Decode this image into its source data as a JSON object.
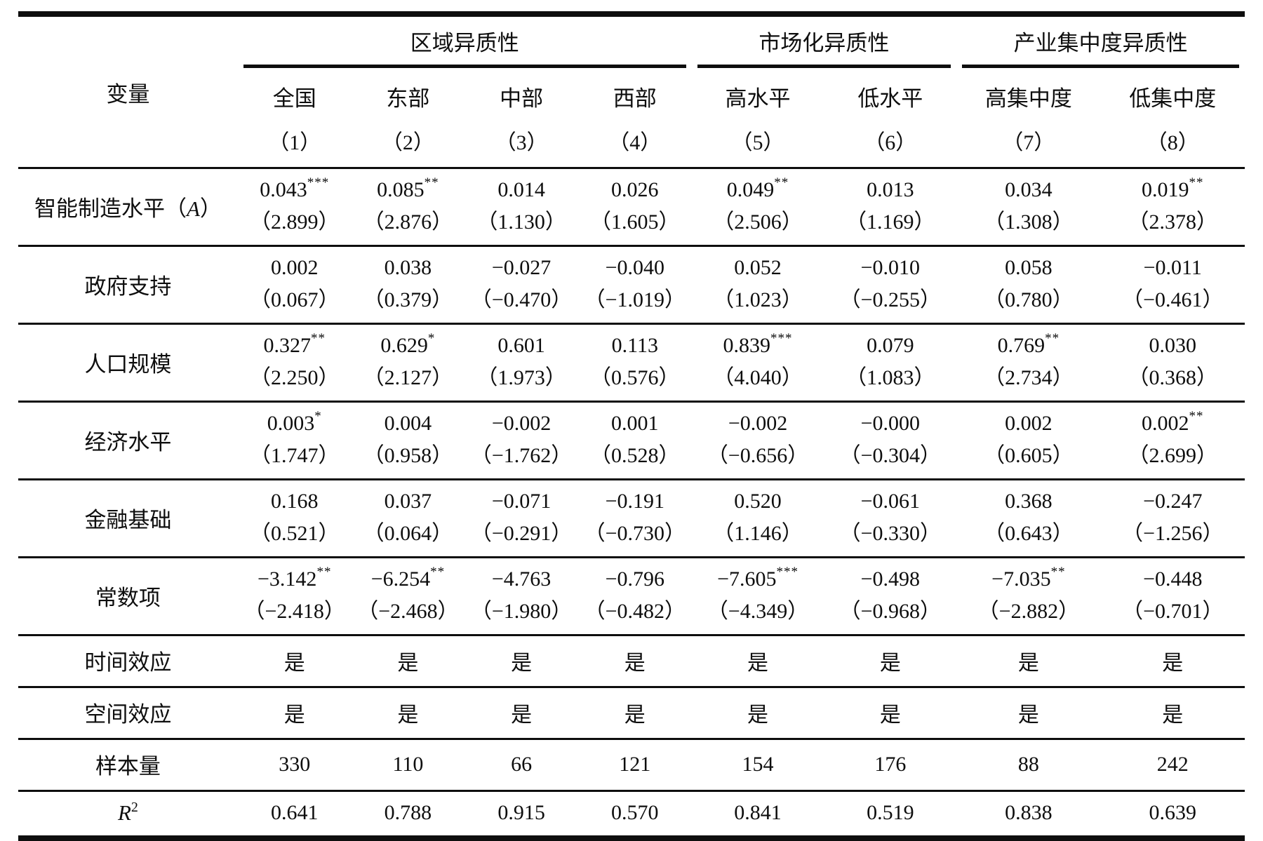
{
  "colors": {
    "text": "#0e0e0e",
    "rule": "#0e0e0e",
    "background": "#ffffff"
  },
  "table": {
    "header": {
      "variable_label": "变量",
      "groups": [
        {
          "label": "区域异质性",
          "span": 4
        },
        {
          "label": "市场化异质性",
          "span": 2
        },
        {
          "label": "产业集中度异质性",
          "span": 2
        }
      ],
      "columns": [
        "全国",
        "东部",
        "中部",
        "西部",
        "高水平",
        "低水平",
        "高集中度",
        "低集中度"
      ],
      "model_numbers": [
        "（1）",
        "（2）",
        "（3）",
        "（4）",
        "（5）",
        "（6）",
        "（7）",
        "（8）"
      ]
    },
    "rows": [
      {
        "kind": "coef",
        "label": {
          "pre": "智能制造水平（",
          "em": "A",
          "suf": "）"
        },
        "cells": [
          {
            "c": "0.043",
            "s": "***",
            "t": "（2.899）"
          },
          {
            "c": "0.085",
            "s": "**",
            "t": "（2.876）"
          },
          {
            "c": "0.014",
            "s": "",
            "t": "（1.130）"
          },
          {
            "c": "0.026",
            "s": "",
            "t": "（1.605）"
          },
          {
            "c": "0.049",
            "s": "**",
            "t": "（2.506）"
          },
          {
            "c": "0.013",
            "s": "",
            "t": "（1.169）"
          },
          {
            "c": "0.034",
            "s": "",
            "t": "（1.308）"
          },
          {
            "c": "0.019",
            "s": "**",
            "t": "（2.378）"
          }
        ]
      },
      {
        "kind": "coef",
        "label": {
          "pre": "政府支持"
        },
        "cells": [
          {
            "c": "0.002",
            "s": "",
            "t": "（0.067）"
          },
          {
            "c": "0.038",
            "s": "",
            "t": "（0.379）"
          },
          {
            "c": "−0.027",
            "s": "",
            "t": "（−0.470）"
          },
          {
            "c": "−0.040",
            "s": "",
            "t": "（−1.019）"
          },
          {
            "c": "0.052",
            "s": "",
            "t": "（1.023）"
          },
          {
            "c": "−0.010",
            "s": "",
            "t": "（−0.255）"
          },
          {
            "c": "0.058",
            "s": "",
            "t": "（0.780）"
          },
          {
            "c": "−0.011",
            "s": "",
            "t": "（−0.461）"
          }
        ]
      },
      {
        "kind": "coef",
        "label": {
          "pre": "人口规模"
        },
        "cells": [
          {
            "c": "0.327",
            "s": "**",
            "t": "（2.250）"
          },
          {
            "c": "0.629",
            "s": "*",
            "t": "（2.127）"
          },
          {
            "c": "0.601",
            "s": "",
            "t": "（1.973）"
          },
          {
            "c": "0.113",
            "s": "",
            "t": "（0.576）"
          },
          {
            "c": "0.839",
            "s": "***",
            "t": "（4.040）"
          },
          {
            "c": "0.079",
            "s": "",
            "t": "（1.083）"
          },
          {
            "c": "0.769",
            "s": "**",
            "t": "（2.734）"
          },
          {
            "c": "0.030",
            "s": "",
            "t": "（0.368）"
          }
        ]
      },
      {
        "kind": "coef",
        "label": {
          "pre": "经济水平"
        },
        "cells": [
          {
            "c": "0.003",
            "s": "*",
            "t": "（1.747）"
          },
          {
            "c": "0.004",
            "s": "",
            "t": "（0.958）"
          },
          {
            "c": "−0.002",
            "s": "",
            "t": "（−1.762）"
          },
          {
            "c": "0.001",
            "s": "",
            "t": "（0.528）"
          },
          {
            "c": "−0.002",
            "s": "",
            "t": "（−0.656）"
          },
          {
            "c": "−0.000",
            "s": "",
            "t": "（−0.304）"
          },
          {
            "c": "0.002",
            "s": "",
            "t": "（0.605）"
          },
          {
            "c": "0.002",
            "s": "**",
            "t": "（2.699）"
          }
        ]
      },
      {
        "kind": "coef",
        "label": {
          "pre": "金融基础"
        },
        "cells": [
          {
            "c": "0.168",
            "s": "",
            "t": "（0.521）"
          },
          {
            "c": "0.037",
            "s": "",
            "t": "（0.064）"
          },
          {
            "c": "−0.071",
            "s": "",
            "t": "（−0.291）"
          },
          {
            "c": "−0.191",
            "s": "",
            "t": "（−0.730）"
          },
          {
            "c": "0.520",
            "s": "",
            "t": "（1.146）"
          },
          {
            "c": "−0.061",
            "s": "",
            "t": "（−0.330）"
          },
          {
            "c": "0.368",
            "s": "",
            "t": "（0.643）"
          },
          {
            "c": "−0.247",
            "s": "",
            "t": "（−1.256）"
          }
        ]
      },
      {
        "kind": "coef",
        "label": {
          "pre": "常数项"
        },
        "cells": [
          {
            "c": "−3.142",
            "s": "**",
            "t": "（−2.418）"
          },
          {
            "c": "−6.254",
            "s": "**",
            "t": "（−2.468）"
          },
          {
            "c": "−4.763",
            "s": "",
            "t": "（−1.980）"
          },
          {
            "c": "−0.796",
            "s": "",
            "t": "（−0.482）"
          },
          {
            "c": "−7.605",
            "s": "***",
            "t": "（−4.349）"
          },
          {
            "c": "−0.498",
            "s": "",
            "t": "（−0.968）"
          },
          {
            "c": "−7.035",
            "s": "**",
            "t": "（−2.882）"
          },
          {
            "c": "−0.448",
            "s": "",
            "t": "（−0.701）"
          }
        ]
      },
      {
        "kind": "plain",
        "label": {
          "pre": "时间效应"
        },
        "cells": [
          "是",
          "是",
          "是",
          "是",
          "是",
          "是",
          "是",
          "是"
        ]
      },
      {
        "kind": "plain",
        "label": {
          "pre": "空间效应"
        },
        "cells": [
          "是",
          "是",
          "是",
          "是",
          "是",
          "是",
          "是",
          "是"
        ]
      },
      {
        "kind": "plain",
        "label": {
          "pre": "样本量"
        },
        "cells": [
          "330",
          "110",
          "66",
          "121",
          "154",
          "176",
          "88",
          "242"
        ]
      },
      {
        "kind": "plain",
        "label": {
          "pre": "",
          "em": "R",
          "sup": "2"
        },
        "cells": [
          "0.641",
          "0.788",
          "0.915",
          "0.570",
          "0.841",
          "0.519",
          "0.838",
          "0.639"
        ]
      }
    ]
  }
}
